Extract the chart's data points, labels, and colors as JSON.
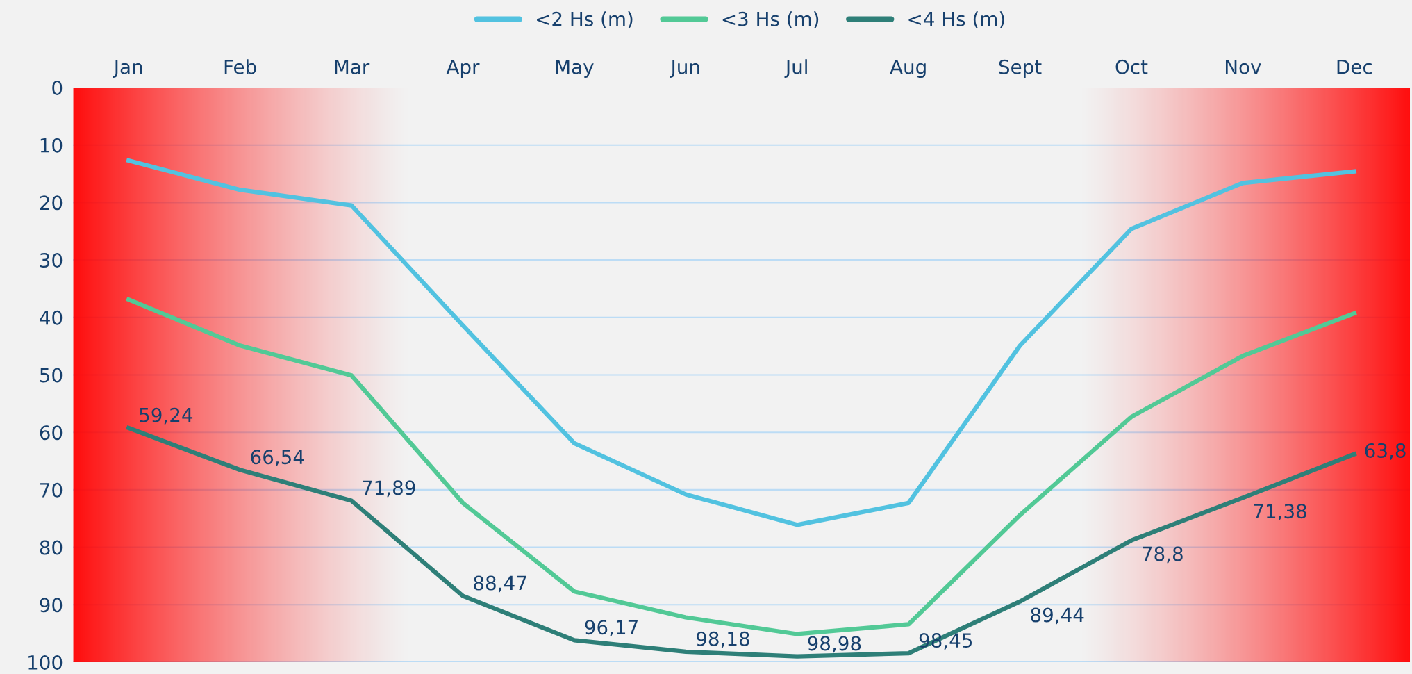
{
  "chart_data": {
    "type": "line",
    "categories": [
      "Jan",
      "Feb",
      "Mar",
      "Apr",
      "May",
      "Jun",
      "Jul",
      "Aug",
      "Sept",
      "Oct",
      "Nov",
      "Dec"
    ],
    "series": [
      {
        "name": "<2 Hs (m)",
        "color": "#52c2e0",
        "values": [
          12.7,
          17.8,
          20.5,
          41.4,
          61.9,
          70.8,
          76.1,
          72.3,
          44.9,
          24.6,
          16.6,
          14.6
        ]
      },
      {
        "name": "<3 Hs (m)",
        "color": "#52c996",
        "values": [
          36.9,
          44.9,
          50.1,
          72.3,
          87.7,
          92.2,
          95.1,
          93.4,
          74.4,
          57.3,
          46.7,
          39.3
        ]
      },
      {
        "name": "<4 Hs (m)",
        "color": "#2e7f78",
        "values": [
          59.24,
          66.54,
          71.89,
          88.47,
          96.17,
          98.18,
          98.98,
          98.45,
          89.44,
          78.8,
          71.38,
          63.8
        ],
        "value_labels": [
          "59,24",
          "66,54",
          "71,89",
          "88,47",
          "96,17",
          "98,18",
          "98,98",
          "98,45",
          "89,44",
          "78,8",
          "71,38",
          "63,8"
        ]
      }
    ],
    "ylim": [
      100,
      0
    ],
    "yticks": [
      0,
      10,
      20,
      30,
      40,
      50,
      60,
      70,
      80,
      90,
      100
    ],
    "grid": "y",
    "legend": "top",
    "marker": "none",
    "line_style": "solid"
  }
}
